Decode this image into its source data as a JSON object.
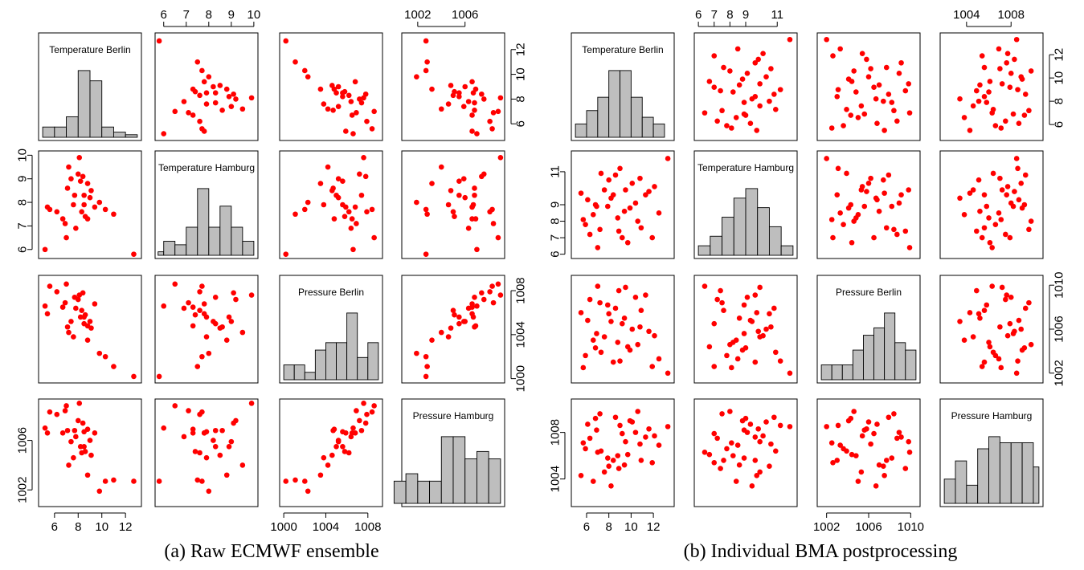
{
  "captions": {
    "left": "(a) Raw ECMWF ensemble",
    "right": "(b) Individual BMA postprocessing"
  },
  "chart_data": [
    {
      "type": "scatter",
      "subtype": "scatterplot-matrix",
      "caption": "(a) Raw ECMWF ensemble",
      "variables": [
        "Temperature Berlin",
        "Temperature Hamburg",
        "Pressure Berlin",
        "Pressure Hamburg"
      ],
      "ranges": [
        [
          5,
          13
        ],
        [
          5.8,
          10
        ],
        [
          1000,
          1009
        ],
        [
          1001,
          1009
        ]
      ],
      "ticks": [
        [
          6,
          8,
          10,
          12
        ],
        [
          6,
          7,
          8,
          9,
          10
        ],
        [
          1000,
          1004,
          1008
        ],
        [
          1002,
          1006
        ]
      ],
      "tick_display": {
        "top": [
          [],
          [
            6,
            7,
            8,
            9,
            10
          ],
          [],
          [
            1002,
            1006
          ]
        ],
        "bottom": [
          [
            6,
            8,
            10,
            12
          ],
          [],
          [
            1000,
            1004,
            1008
          ],
          []
        ],
        "left": [
          [],
          [
            6,
            7,
            8,
            9,
            10
          ],
          [],
          [
            1002,
            1006
          ]
        ],
        "right": [
          [
            6,
            8,
            10,
            12
          ],
          [],
          [
            1000,
            1004,
            1008
          ],
          []
        ]
      },
      "diagonal_histograms": {
        "Temperature Berlin": {
          "breaks": [
            5,
            6,
            7,
            8,
            9,
            10,
            11,
            12,
            13
          ],
          "counts": [
            2,
            2,
            4,
            13,
            11,
            2,
            1,
            0.5
          ]
        },
        "Temperature Hamburg": {
          "breaks": [
            5.75,
            6,
            6.5,
            7,
            7.5,
            8,
            8.5,
            9,
            9.5,
            10
          ],
          "counts": [
            1,
            4,
            3,
            8,
            19,
            8,
            14,
            8,
            4
          ]
        },
        "Pressure Berlin": {
          "breaks": [
            1000,
            1001,
            1002,
            1003,
            1004,
            1005,
            1006,
            1007,
            1008,
            1009
          ],
          "counts": [
            2,
            2,
            1,
            4,
            5,
            5,
            9,
            3,
            5
          ]
        },
        "Pressure Hamburg": {
          "breaks": [
            1000,
            1001,
            1002,
            1003,
            1004,
            1005,
            1006,
            1007,
            1008,
            1009
          ],
          "counts": [
            3,
            4,
            3,
            3,
            9,
            9,
            6,
            7,
            6
          ]
        }
      },
      "points": [
        [
          12.7,
          5.8,
          1000.2,
          1002.7
        ],
        [
          8.1,
          9.9,
          1007.6,
          1009.0
        ],
        [
          6.2,
          7.6,
          1007.9,
          1008.1
        ],
        [
          7.7,
          8.3,
          1007.4,
          1006.8
        ],
        [
          8.5,
          7.9,
          1005.6,
          1006.7
        ],
        [
          9.0,
          8.2,
          1005.2,
          1006.0
        ],
        [
          7.0,
          6.5,
          1008.6,
          1008.8
        ],
        [
          8.4,
          9.1,
          1007.8,
          1007.4
        ],
        [
          7.4,
          9.0,
          1005.2,
          1005.9
        ],
        [
          9.4,
          7.8,
          1006.8,
          1006.6
        ],
        [
          5.6,
          7.7,
          1008.4,
          1008.3
        ],
        [
          8.2,
          8.9,
          1005.6,
          1005.5
        ],
        [
          8.8,
          7.3,
          1004.8,
          1006.9
        ],
        [
          7.1,
          8.6,
          1004.7,
          1006.8
        ],
        [
          9.1,
          8.5,
          1004.6,
          1004.8
        ],
        [
          10.3,
          7.7,
          1002.0,
          1002.7
        ],
        [
          5.2,
          6.0,
          1006.6,
          1007.0
        ],
        [
          7.6,
          7.9,
          1003.8,
          1004.6
        ],
        [
          8.3,
          7.6,
          1006.2,
          1005.0
        ],
        [
          6.7,
          7.3,
          1006.5,
          1006.6
        ],
        [
          8.8,
          8.8,
          1003.5,
          1003.2
        ],
        [
          11.0,
          7.5,
          1001.1,
          1002.8
        ],
        [
          8.0,
          9.2,
          1007.2,
          1007.6
        ],
        [
          6.9,
          7.1,
          1006.9,
          1008.4
        ],
        [
          9.8,
          8.0,
          1002.3,
          1001.9
        ],
        [
          5.4,
          7.8,
          1005.9,
          1006.6
        ],
        [
          7.8,
          6.9,
          1006.4,
          1006.3
        ],
        [
          8.6,
          7.4,
          1005.8,
          1005.1
        ],
        [
          7.2,
          9.5,
          1004.2,
          1004.0
        ],
        [
          8.5,
          8.3,
          1005.0,
          1005.5
        ]
      ]
    },
    {
      "type": "scatter",
      "subtype": "scatterplot-matrix",
      "caption": "(b) Individual BMA postprocessing",
      "variables": [
        "Temperature Berlin",
        "Temperature Hamburg",
        "Pressure Berlin",
        "Pressure Hamburg"
      ],
      "ranges": [
        [
          5,
          13.5
        ],
        [
          6,
          12
        ],
        [
          1001.5,
          1010.5
        ],
        [
          1002,
          1010.5
        ]
      ],
      "ticks": [
        [
          6,
          8,
          10,
          12
        ],
        [
          6,
          7,
          8,
          9,
          11
        ],
        [
          1002,
          1006,
          1010
        ],
        [
          1004,
          1008
        ]
      ],
      "tick_display": {
        "top": [
          [],
          [
            6,
            7,
            8,
            9,
            11
          ],
          [],
          [
            1004,
            1008
          ]
        ],
        "bottom": [
          [
            6,
            8,
            10,
            12
          ],
          [],
          [
            1002,
            1006,
            1010
          ],
          []
        ],
        "left": [
          [],
          [
            6,
            7,
            8,
            9,
            11
          ],
          [],
          [
            1004,
            1008
          ]
        ],
        "right": [
          [
            6,
            8,
            10,
            12
          ],
          [],
          [
            1002,
            1006,
            1010
          ],
          []
        ]
      },
      "diagonal_histograms": {
        "Temperature Berlin": {
          "breaks": [
            5,
            6,
            7,
            8,
            9,
            10,
            11,
            12,
            13
          ],
          "counts": [
            1,
            2,
            3,
            5,
            5,
            3,
            1.5,
            1
          ]
        },
        "Temperature Hamburg": {
          "breaks": [
            6,
            6.75,
            7.5,
            8.25,
            9,
            9.75,
            10.5,
            11.25,
            12
          ],
          "counts": [
            1,
            2,
            4,
            6,
            7,
            5,
            3,
            1
          ]
        },
        "Pressure Berlin": {
          "breaks": [
            1001.5,
            1002.5,
            1003.5,
            1004.5,
            1005.5,
            1006.5,
            1007.5,
            1008.5,
            1009.5,
            1010.5
          ],
          "counts": [
            1,
            1,
            1,
            2,
            3,
            3.5,
            4.5,
            2.5,
            2
          ]
        },
        "Pressure Hamburg": {
          "breaks": [
            1002,
            1003,
            1004,
            1005,
            1006,
            1007,
            1008,
            1009,
            1010,
            1010.5
          ],
          "counts": [
            2,
            3.5,
            1.5,
            4.5,
            5.5,
            5,
            5,
            5,
            3
          ]
        }
      },
      "points": [
        [
          13.3,
          11.8,
          1002.0,
          1008.5
        ],
        [
          5.5,
          9.7,
          1007.5,
          1004.3
        ],
        [
          8.4,
          9.6,
          1003.0,
          1005.6
        ],
        [
          7.2,
          7.5,
          1008.4,
          1009.6
        ],
        [
          10.8,
          10.6,
          1006.2,
          1007.0
        ],
        [
          8.8,
          8.2,
          1004.8,
          1006.0
        ],
        [
          6.9,
          8.9,
          1005.6,
          1008.2
        ],
        [
          9.5,
          9.9,
          1009.8,
          1007.2
        ],
        [
          11.9,
          7.0,
          1002.6,
          1005.4
        ],
        [
          6.1,
          9.3,
          1006.8,
          1008.7
        ],
        [
          9.9,
          8.8,
          1004.1,
          1009.0
        ],
        [
          8.0,
          10.5,
          1007.4,
          1005.1
        ],
        [
          5.9,
          7.8,
          1003.6,
          1006.6
        ],
        [
          10.4,
          9.1,
          1008.9,
          1008.0
        ],
        [
          7.6,
          9.9,
          1005.3,
          1004.6
        ],
        [
          9.2,
          7.0,
          1006.5,
          1007.9
        ],
        [
          12.5,
          8.5,
          1003.3,
          1006.9
        ],
        [
          8.6,
          10.8,
          1007.9,
          1009.3
        ],
        [
          6.6,
          8.4,
          1005.0,
          1003.8
        ],
        [
          11.3,
          9.6,
          1009.1,
          1007.6
        ],
        [
          9.7,
          6.7,
          1004.4,
          1006.1
        ],
        [
          7.9,
          8.9,
          1008.2,
          1005.8
        ],
        [
          10.1,
          10.3,
          1006.0,
          1008.9
        ],
        [
          5.7,
          8.1,
          1002.5,
          1007.1
        ],
        [
          8.9,
          7.4,
          1009.5,
          1004.9
        ],
        [
          11.6,
          9.8,
          1005.8,
          1008.3
        ],
        [
          7.3,
          10.9,
          1003.9,
          1006.4
        ],
        [
          9.4,
          8.6,
          1007.0,
          1005.2
        ],
        [
          6.3,
          7.2,
          1008.7,
          1007.5
        ],
        [
          10.6,
          8.0,
          1004.6,
          1009.8
        ],
        [
          8.2,
          9.4,
          1006.7,
          1003.4
        ],
        [
          12.1,
          10.1,
          1005.4,
          1007.7
        ],
        [
          7.0,
          6.4,
          1009.9,
          1006.3
        ],
        [
          9.0,
          11.2,
          1003.1,
          1008.6
        ],
        [
          10.9,
          7.6,
          1007.7,
          1005.6
        ],
        [
          6.8,
          9.0,
          1004.3,
          1009.2
        ]
      ]
    }
  ]
}
